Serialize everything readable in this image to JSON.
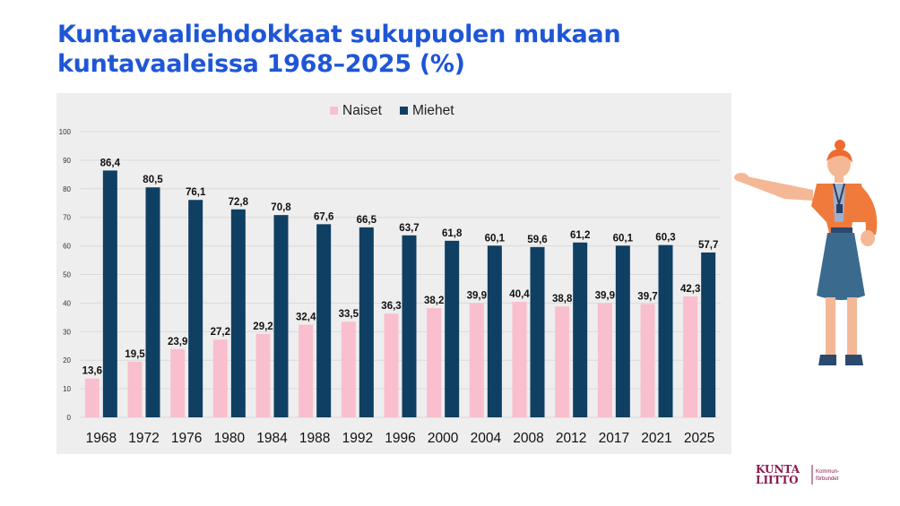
{
  "title": {
    "line1": "Kuntavaaliehdokkaat sukupuolen mukaan",
    "line2": "kuntavaaleissa 1968–2025 (%)"
  },
  "chart_data": {
    "type": "bar",
    "categories": [
      "1968",
      "1972",
      "1976",
      "1980",
      "1984",
      "1988",
      "1992",
      "1996",
      "2000",
      "2004",
      "2008",
      "2012",
      "2017",
      "2021",
      "2025"
    ],
    "series": [
      {
        "name": "Naiset",
        "color": "#f9bfcf",
        "values": [
          13.6,
          19.5,
          23.9,
          27.2,
          29.2,
          32.4,
          33.5,
          36.3,
          38.2,
          39.9,
          40.4,
          38.8,
          39.9,
          39.7,
          42.3
        ]
      },
      {
        "name": "Miehet",
        "color": "#0f3f63",
        "values": [
          86.4,
          80.5,
          76.1,
          72.8,
          70.8,
          67.6,
          66.5,
          63.7,
          61.8,
          60.1,
          59.6,
          61.2,
          60.1,
          60.3,
          57.7
        ]
      }
    ],
    "ylim": [
      0,
      100
    ],
    "yticks": [
      0,
      10,
      20,
      30,
      40,
      50,
      60,
      70,
      80,
      90,
      100
    ],
    "grid": true,
    "legend": "top-center",
    "decimal_separator": ","
  },
  "logo": {
    "line1": "KUNTA",
    "line2": "LIITTO",
    "sub1": "Kommun-",
    "sub2": "förbundet",
    "color": "#8a1a4e"
  },
  "colors": {
    "title": "#1e56d6",
    "panel": "#eeeeee",
    "gridline": "#dadada"
  }
}
